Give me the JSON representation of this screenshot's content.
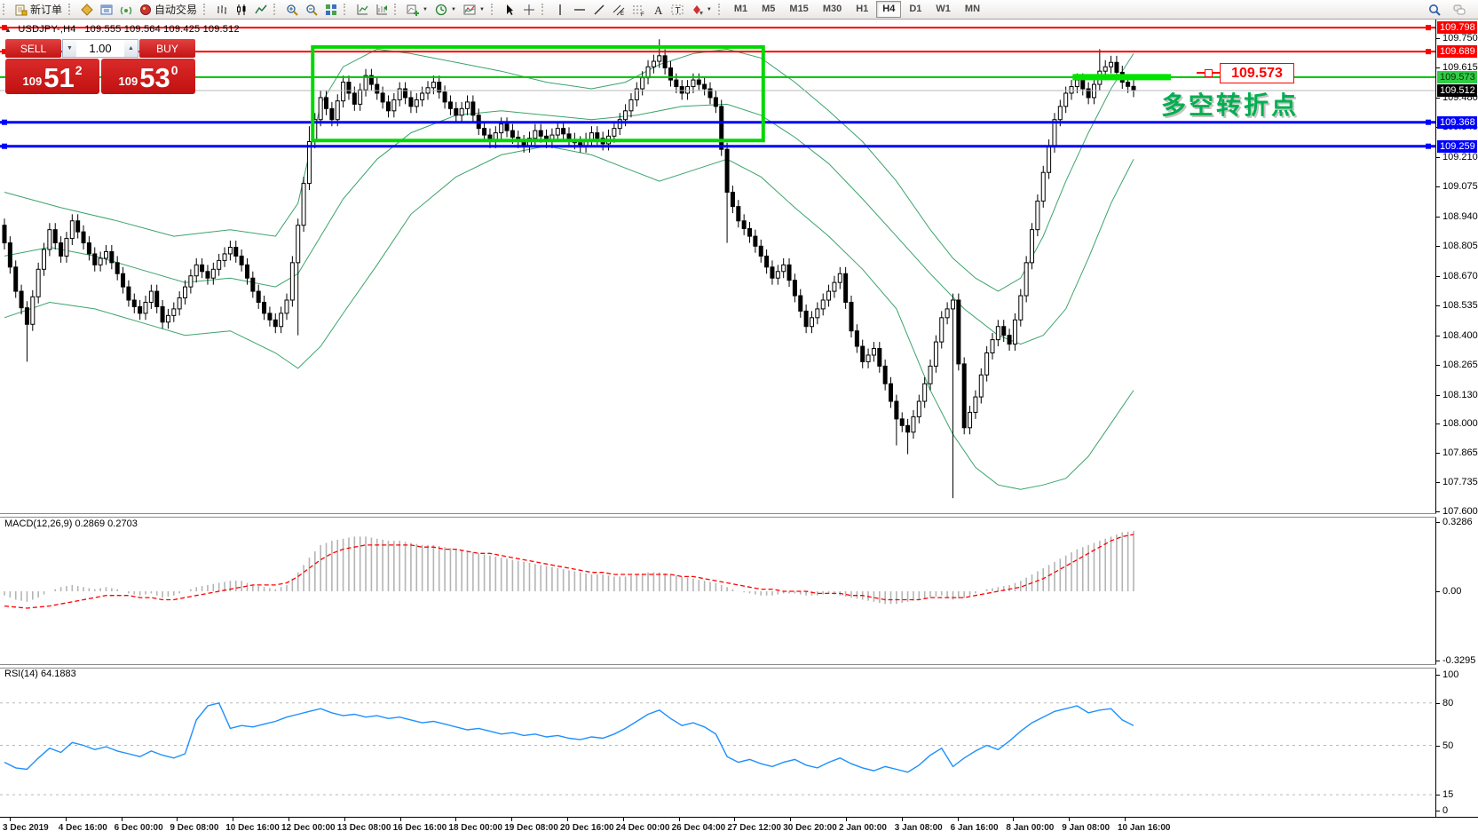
{
  "toolbar": {
    "new_order_label": "新订单",
    "autotrading_label": "自动交易",
    "groups": [
      {
        "items": [
          {
            "name": "new-order-button",
            "icon": "doc",
            "label": "新订单"
          }
        ]
      },
      {
        "items": [
          {
            "name": "market-watch-button",
            "icon": "diamond"
          },
          {
            "name": "data-window-button",
            "icon": "window"
          },
          {
            "name": "signals-button",
            "icon": "signal"
          },
          {
            "name": "autotrading-button",
            "icon": "bot",
            "label": "自动交易"
          }
        ]
      },
      {
        "items": [
          {
            "name": "bar-chart-type-button",
            "icon": "bars"
          },
          {
            "name": "candlestick-type-button",
            "icon": "candles"
          },
          {
            "name": "line-chart-type-button",
            "icon": "linechart"
          }
        ]
      },
      {
        "items": [
          {
            "name": "zoom-in-button",
            "icon": "zoomin"
          },
          {
            "name": "zoom-out-button",
            "icon": "zoomout"
          },
          {
            "name": "tile-windows-button",
            "icon": "tiles"
          }
        ]
      },
      {
        "items": [
          {
            "name": "indicators-button",
            "icon": "indic1"
          },
          {
            "name": "indicator-windows-button",
            "icon": "indic2"
          }
        ]
      },
      {
        "items": [
          {
            "name": "new-chart-button",
            "icon": "chartplus",
            "caret": true
          },
          {
            "name": "periods-button",
            "icon": "clock",
            "caret": true
          },
          {
            "name": "templates-button",
            "icon": "template",
            "caret": true
          }
        ]
      },
      {
        "items": [
          {
            "name": "cursor-button",
            "icon": "cursor"
          },
          {
            "name": "crosshair-button",
            "icon": "cross"
          }
        ]
      },
      {
        "items": [
          {
            "name": "vertical-line-button",
            "icon": "vline"
          },
          {
            "name": "horizontal-line-button",
            "icon": "hline"
          },
          {
            "name": "trendline-button",
            "icon": "tline"
          },
          {
            "name": "equidistant-channel-button",
            "icon": "channel"
          },
          {
            "name": "fibonacci-button",
            "icon": "fibo"
          },
          {
            "name": "text-button",
            "icon": "texta"
          },
          {
            "name": "text-label-button",
            "icon": "textlabel"
          },
          {
            "name": "arrows-button",
            "icon": "arrows",
            "caret": true
          }
        ]
      }
    ],
    "timeframes": [
      "M1",
      "M5",
      "M15",
      "M30",
      "H1",
      "H4",
      "D1",
      "W1",
      "MN"
    ],
    "active_timeframe": "H4"
  },
  "chart_header": {
    "collapse_glyph": "▲",
    "symbol_title": "USDJPY-,H4",
    "ohlc_text": "109.555 109.564 109.425 109.512"
  },
  "trade_panel": {
    "sell_label": "SELL",
    "buy_label": "BUY",
    "volume": "1.00",
    "spinner_down": "▼",
    "spinner_up": "▲",
    "bid": {
      "prefix": "109",
      "big": "51",
      "sup": "2"
    },
    "ask": {
      "prefix": "109",
      "big": "53",
      "sup": "0"
    }
  },
  "annotations": {
    "price_callout": "109.573",
    "cn_note": "多空转折点"
  },
  "macd_pane": {
    "label": "MACD(12,26,9) 0.2869 0.2703"
  },
  "rsi_pane": {
    "label": "RSI(14) 64.1883"
  },
  "colors": {
    "bull": "#ffffff",
    "bear": "#000000",
    "wick": "#000000",
    "band": "#3ba36b",
    "hline_red": "#ff0000",
    "hline_blue": "#0000ff",
    "hline_green": "#00c000",
    "current_line": "#b9b9b9",
    "lime_bar": "#00e400",
    "rect_green": "#00d800",
    "macd_hist": "#b4b4b4",
    "macd_signal": "#ff0000",
    "rsi_line": "#1e90ff",
    "rsi_level": "#b9b9b9",
    "badge_red": "#ff0000",
    "badge_blue": "#0000ff",
    "badge_green": "#2fcc46",
    "badge_black": "#000000"
  },
  "chart_data": {
    "type": "candlestick",
    "symbol": "USDJPY",
    "timeframe": "H4",
    "y_axis": {
      "min": 107.6,
      "max": 109.79
    },
    "y_ticks": [
      109.75,
      109.615,
      109.48,
      109.345,
      109.21,
      109.075,
      108.94,
      108.805,
      108.67,
      108.535,
      108.4,
      108.265,
      108.13,
      108.0,
      107.865,
      107.735,
      107.6
    ],
    "badges": [
      {
        "text": "109.798",
        "price": 109.798,
        "bg": "badge_red",
        "fg": "#ffffff"
      },
      {
        "text": "109.689",
        "price": 109.689,
        "bg": "badge_red",
        "fg": "#ffffff"
      },
      {
        "text": "109.573",
        "price": 109.573,
        "bg": "badge_green",
        "fg": "#003300"
      },
      {
        "text": "109.512",
        "price": 109.512,
        "bg": "badge_black",
        "fg": "#ffffff"
      },
      {
        "text": "109.368",
        "price": 109.368,
        "bg": "badge_blue",
        "fg": "#ffffff"
      },
      {
        "text": "109.259",
        "price": 109.259,
        "bg": "badge_blue",
        "fg": "#ffffff"
      }
    ],
    "x_axis_labels": [
      "3 Dec 2019",
      "4 Dec 16:00",
      "6 Dec 00:00",
      "9 Dec 08:00",
      "10 Dec 16:00",
      "12 Dec 00:00",
      "13 Dec 08:00",
      "16 Dec 16:00",
      "18 Dec 00:00",
      "19 Dec 08:00",
      "20 Dec 16:00",
      "24 Dec 00:00",
      "26 Dec 04:00",
      "27 Dec 12:00",
      "30 Dec 20:00",
      "2 Jan 00:00",
      "3 Jan 08:00",
      "6 Jan 16:00",
      "8 Jan 00:00",
      "9 Jan 08:00",
      "10 Jan 16:00"
    ],
    "first_open": 108.9,
    "closes": [
      108.82,
      108.6,
      108.45,
      108.7,
      108.88,
      108.76,
      108.92,
      108.82,
      108.72,
      108.78,
      108.68,
      108.56,
      108.5,
      108.6,
      108.46,
      108.52,
      108.62,
      108.72,
      108.66,
      108.74,
      108.8,
      108.72,
      108.6,
      108.5,
      108.44,
      108.56,
      108.9,
      109.28,
      109.48,
      109.38,
      109.55,
      109.45,
      109.58,
      109.5,
      109.42,
      109.52,
      109.44,
      109.5,
      109.55,
      109.46,
      109.4,
      109.46,
      109.34,
      109.28,
      109.36,
      109.3,
      109.26,
      109.33,
      109.28,
      109.34,
      109.29,
      109.26,
      109.32,
      109.27,
      109.34,
      109.42,
      109.52,
      109.62,
      109.67,
      109.56,
      109.5,
      109.56,
      109.52,
      109.44,
      109.05,
      108.92,
      108.85,
      108.76,
      108.66,
      108.72,
      108.58,
      108.44,
      108.52,
      108.6,
      108.68,
      108.42,
      108.28,
      108.34,
      108.18,
      108.02,
      107.96,
      108.1,
      108.26,
      108.48,
      108.56,
      107.98,
      108.12,
      108.32,
      108.44,
      108.36,
      108.58,
      108.88,
      109.14,
      109.38,
      109.5,
      109.56,
      109.48,
      109.6,
      109.64,
      109.55,
      109.512
    ],
    "wick_pad": 0.03,
    "wick_overrides": {
      "2": {
        "low": 108.28
      },
      "26": {
        "low": 108.4
      },
      "27": {
        "high": 109.35
      },
      "58": {
        "high": 109.745
      },
      "64": {
        "low": 108.82
      },
      "79": {
        "low": 107.9
      },
      "80": {
        "low": 107.86
      },
      "84": {
        "low": 107.66
      },
      "85": {
        "low": 107.95
      },
      "97": {
        "high": 109.7
      }
    },
    "bollinger": {
      "upper": [
        [
          0,
          109.05
        ],
        [
          5,
          108.98
        ],
        [
          10,
          108.92
        ],
        [
          15,
          108.85
        ],
        [
          20,
          108.88
        ],
        [
          24,
          108.85
        ],
        [
          26,
          109.0
        ],
        [
          28,
          109.45
        ],
        [
          30,
          109.62
        ],
        [
          33,
          109.7
        ],
        [
          36,
          109.68
        ],
        [
          40,
          109.64
        ],
        [
          44,
          109.6
        ],
        [
          48,
          109.55
        ],
        [
          52,
          109.52
        ],
        [
          55,
          109.55
        ],
        [
          58,
          109.63
        ],
        [
          61,
          109.68
        ],
        [
          64,
          109.7
        ],
        [
          67,
          109.66
        ],
        [
          70,
          109.55
        ],
        [
          73,
          109.42
        ],
        [
          76,
          109.28
        ],
        [
          79,
          109.1
        ],
        [
          82,
          108.88
        ],
        [
          84,
          108.75
        ],
        [
          86,
          108.66
        ],
        [
          88,
          108.6
        ],
        [
          90,
          108.66
        ],
        [
          92,
          108.85
        ],
        [
          94,
          109.1
        ],
        [
          96,
          109.32
        ],
        [
          98,
          109.52
        ],
        [
          100,
          109.68
        ]
      ],
      "middle": [
        [
          0,
          108.76
        ],
        [
          4,
          108.8
        ],
        [
          8,
          108.76
        ],
        [
          12,
          108.7
        ],
        [
          16,
          108.64
        ],
        [
          20,
          108.66
        ],
        [
          24,
          108.62
        ],
        [
          26,
          108.68
        ],
        [
          28,
          108.85
        ],
        [
          30,
          109.02
        ],
        [
          33,
          109.2
        ],
        [
          36,
          109.32
        ],
        [
          40,
          109.4
        ],
        [
          44,
          109.42
        ],
        [
          48,
          109.4
        ],
        [
          52,
          109.38
        ],
        [
          56,
          109.4
        ],
        [
          60,
          109.44
        ],
        [
          64,
          109.45
        ],
        [
          67,
          109.4
        ],
        [
          70,
          109.3
        ],
        [
          73,
          109.18
        ],
        [
          76,
          109.02
        ],
        [
          79,
          108.85
        ],
        [
          82,
          108.68
        ],
        [
          85,
          108.52
        ],
        [
          88,
          108.4
        ],
        [
          90,
          108.36
        ],
        [
          92,
          108.4
        ],
        [
          94,
          108.52
        ],
        [
          96,
          108.75
        ],
        [
          98,
          109.0
        ],
        [
          100,
          109.2
        ]
      ],
      "lower": [
        [
          0,
          108.48
        ],
        [
          4,
          108.55
        ],
        [
          8,
          108.52
        ],
        [
          12,
          108.46
        ],
        [
          16,
          108.4
        ],
        [
          20,
          108.42
        ],
        [
          24,
          108.32
        ],
        [
          26,
          108.25
        ],
        [
          28,
          108.35
        ],
        [
          30,
          108.5
        ],
        [
          33,
          108.72
        ],
        [
          36,
          108.95
        ],
        [
          40,
          109.12
        ],
        [
          44,
          109.22
        ],
        [
          48,
          109.26
        ],
        [
          52,
          109.22
        ],
        [
          55,
          109.16
        ],
        [
          58,
          109.1
        ],
        [
          61,
          109.15
        ],
        [
          64,
          109.2
        ],
        [
          67,
          109.12
        ],
        [
          70,
          108.98
        ],
        [
          73,
          108.85
        ],
        [
          76,
          108.7
        ],
        [
          79,
          108.52
        ],
        [
          82,
          108.15
        ],
        [
          84,
          107.95
        ],
        [
          86,
          107.8
        ],
        [
          88,
          107.72
        ],
        [
          90,
          107.7
        ],
        [
          92,
          107.72
        ],
        [
          94,
          107.75
        ],
        [
          96,
          107.85
        ],
        [
          98,
          108.0
        ],
        [
          100,
          108.15
        ]
      ]
    },
    "hlines": [
      {
        "price": 109.798,
        "color": "hline_red",
        "width": 2,
        "handles": true
      },
      {
        "price": 109.689,
        "color": "hline_red",
        "width": 2,
        "handles": true
      },
      {
        "price": 109.573,
        "color": "hline_green",
        "width": 2,
        "handles": false
      },
      {
        "price": 109.512,
        "color": "current_line",
        "width": 1,
        "handles": false
      },
      {
        "price": 109.368,
        "color": "hline_blue",
        "width": 3,
        "handles": true
      },
      {
        "price": 109.259,
        "color": "hline_blue",
        "width": 3,
        "handles": true
      }
    ],
    "rect_annotation": {
      "i1": 27.3,
      "i2": 67.2,
      "p_top": 109.71,
      "p_bottom": 109.285
    },
    "highlight_bar": {
      "i1": 94.6,
      "i2": 103.3,
      "price": 109.573,
      "thickness": 7
    },
    "macd": {
      "scale": [
        {
          "text": "0.3286",
          "v": 0.3286
        },
        {
          "text": "0.00",
          "v": 0.0
        },
        {
          "text": "-0.3295",
          "v": -0.3295
        }
      ],
      "histogram": [
        -0.02,
        -0.04,
        -0.05,
        -0.03,
        0.0,
        0.02,
        0.03,
        0.02,
        0.01,
        0.02,
        0.01,
        -0.01,
        -0.02,
        -0.01,
        -0.03,
        -0.02,
        0.0,
        0.02,
        0.03,
        0.04,
        0.05,
        0.05,
        0.03,
        0.02,
        0.01,
        0.03,
        0.09,
        0.16,
        0.22,
        0.24,
        0.25,
        0.26,
        0.26,
        0.25,
        0.24,
        0.24,
        0.23,
        0.22,
        0.22,
        0.21,
        0.2,
        0.19,
        0.18,
        0.17,
        0.16,
        0.15,
        0.14,
        0.13,
        0.12,
        0.11,
        0.1,
        0.09,
        0.08,
        0.08,
        0.07,
        0.07,
        0.08,
        0.09,
        0.09,
        0.08,
        0.07,
        0.06,
        0.05,
        0.04,
        0.02,
        0.0,
        -0.01,
        -0.02,
        -0.02,
        -0.01,
        -0.01,
        -0.02,
        -0.02,
        -0.01,
        -0.02,
        -0.03,
        -0.04,
        -0.05,
        -0.06,
        -0.06,
        -0.05,
        -0.04,
        -0.03,
        -0.02,
        -0.04,
        -0.03,
        -0.01,
        0.01,
        0.02,
        0.03,
        0.05,
        0.08,
        0.11,
        0.14,
        0.17,
        0.2,
        0.22,
        0.24,
        0.26,
        0.28,
        0.287
      ],
      "signal": [
        -0.07,
        -0.075,
        -0.08,
        -0.075,
        -0.07,
        -0.06,
        -0.05,
        -0.04,
        -0.03,
        -0.02,
        -0.02,
        -0.02,
        -0.03,
        -0.03,
        -0.04,
        -0.04,
        -0.03,
        -0.02,
        -0.01,
        0.0,
        0.01,
        0.02,
        0.03,
        0.03,
        0.03,
        0.04,
        0.07,
        0.11,
        0.15,
        0.18,
        0.2,
        0.21,
        0.22,
        0.22,
        0.22,
        0.22,
        0.22,
        0.21,
        0.21,
        0.2,
        0.2,
        0.19,
        0.18,
        0.18,
        0.17,
        0.16,
        0.15,
        0.14,
        0.13,
        0.12,
        0.11,
        0.1,
        0.09,
        0.09,
        0.08,
        0.08,
        0.08,
        0.08,
        0.08,
        0.08,
        0.07,
        0.07,
        0.06,
        0.05,
        0.04,
        0.03,
        0.02,
        0.01,
        0.01,
        0.0,
        0.0,
        0.0,
        -0.01,
        -0.01,
        -0.01,
        -0.02,
        -0.02,
        -0.03,
        -0.04,
        -0.04,
        -0.04,
        -0.04,
        -0.03,
        -0.03,
        -0.03,
        -0.03,
        -0.02,
        -0.01,
        0.0,
        0.01,
        0.02,
        0.04,
        0.06,
        0.09,
        0.12,
        0.15,
        0.18,
        0.21,
        0.24,
        0.26,
        0.27
      ]
    },
    "rsi": {
      "scale": [
        {
          "text": "100",
          "v": 100
        },
        {
          "text": "80",
          "v": 80
        },
        {
          "text": "50",
          "v": 50
        },
        {
          "text": "15",
          "v": 15
        },
        {
          "text": "0",
          "v": 0
        }
      ],
      "levels": [
        80,
        50,
        15
      ],
      "values": [
        38,
        34,
        33,
        41,
        48,
        45,
        52,
        50,
        47,
        49,
        46,
        44,
        42,
        46,
        43,
        41,
        44,
        68,
        78,
        80,
        62,
        64,
        63,
        65,
        67,
        70,
        72,
        74,
        76,
        73,
        71,
        72,
        70,
        71,
        69,
        70,
        68,
        66,
        67,
        65,
        63,
        61,
        62,
        60,
        58,
        59,
        57,
        58,
        56,
        57,
        55,
        54,
        56,
        55,
        58,
        62,
        67,
        72,
        75,
        69,
        64,
        66,
        63,
        58,
        42,
        38,
        40,
        37,
        35,
        38,
        40,
        36,
        34,
        38,
        41,
        37,
        34,
        32,
        35,
        33,
        31,
        36,
        43,
        48,
        35,
        41,
        46,
        50,
        47,
        53,
        60,
        66,
        70,
        74,
        76,
        78,
        73,
        75,
        76,
        68,
        64
      ]
    }
  }
}
